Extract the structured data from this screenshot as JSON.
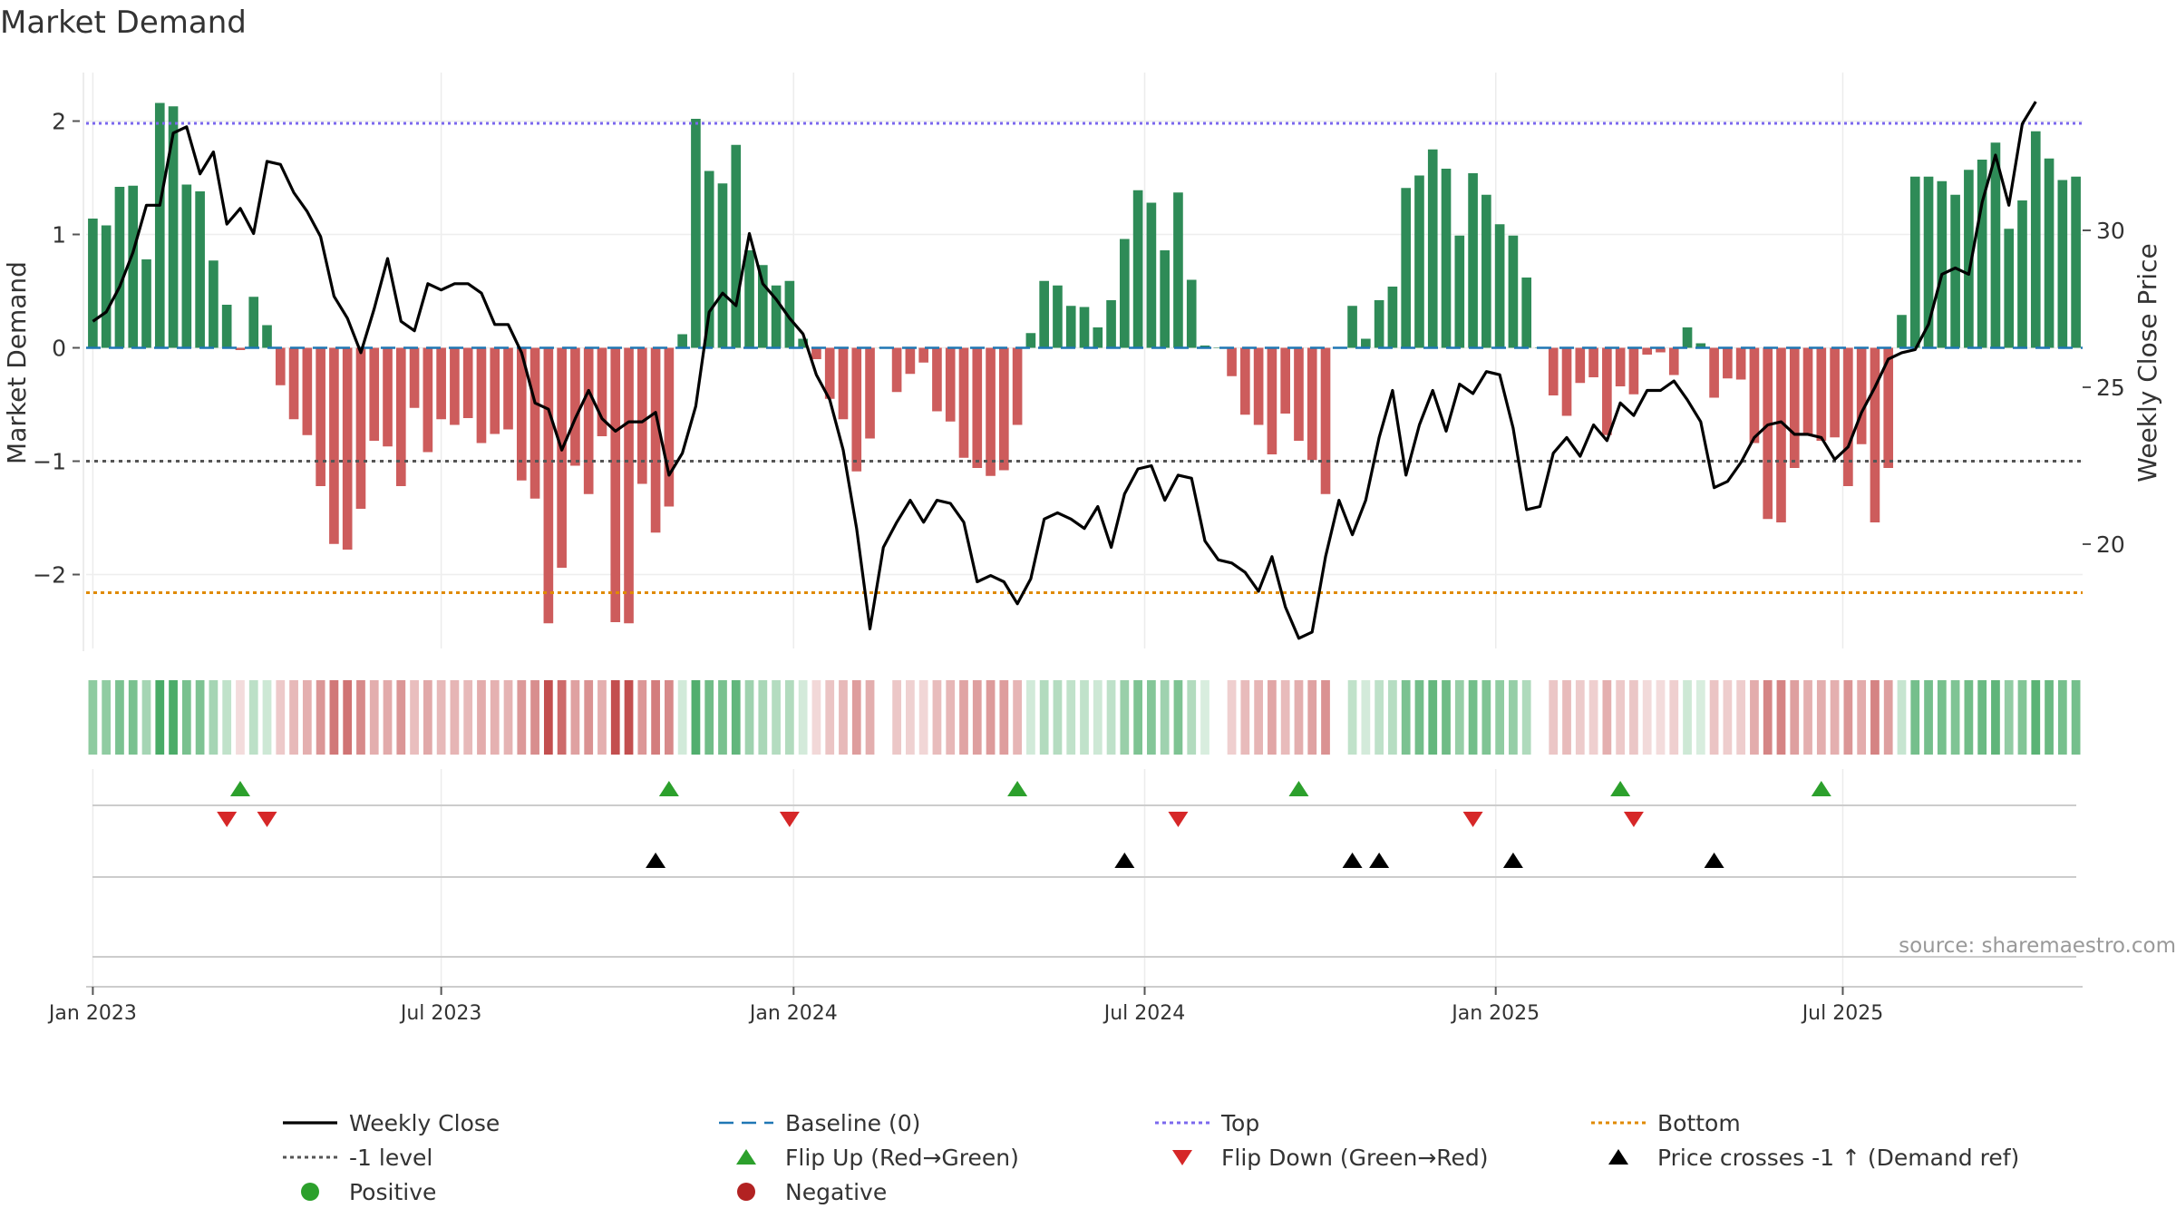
{
  "chart_data": {
    "type": "bar",
    "title": "Market Demand",
    "ylabel": "Market Demand",
    "y2label": "Weekly Close Price",
    "source": "source: sharemaestro.com",
    "ylim": [
      -2.6,
      2.25
    ],
    "y2lim": [
      16.15,
      34.75
    ],
    "yticks": [
      {
        "value": 2,
        "label": "2"
      },
      {
        "value": 1,
        "label": "1"
      },
      {
        "value": 0,
        "label": "0"
      },
      {
        "value": -1,
        "label": "−1"
      },
      {
        "value": -2,
        "label": "−2"
      }
    ],
    "y2ticks": [
      {
        "value": 30,
        "label": "30"
      },
      {
        "value": 25,
        "label": "25"
      },
      {
        "value": 20,
        "label": "20"
      }
    ],
    "xticks": [
      {
        "week": 1,
        "label": "Jan 2023"
      },
      {
        "week": 27,
        "label": "Jul 2023"
      },
      {
        "week": 53.3,
        "label": "Jan 2024"
      },
      {
        "week": 79.5,
        "label": "Jul 2024"
      },
      {
        "week": 105.7,
        "label": "Jan 2025"
      },
      {
        "week": 131.6,
        "label": "Jul 2025"
      }
    ],
    "reference_lines": {
      "top": 1.98,
      "bottom": -2.16,
      "minus_one": -1,
      "baseline": 0
    },
    "demand": [
      1.14,
      1.08,
      1.42,
      1.43,
      0.78,
      2.16,
      2.13,
      1.44,
      1.38,
      0.77,
      0.38,
      -0.02,
      0.45,
      0.2,
      -0.33,
      -0.63,
      -0.77,
      -1.22,
      -1.73,
      -1.78,
      -1.42,
      -0.82,
      -0.87,
      -1.22,
      -0.53,
      -0.92,
      -0.63,
      -0.68,
      -0.62,
      -0.84,
      -0.76,
      -0.72,
      -1.17,
      -1.33,
      -2.43,
      -1.94,
      -1.04,
      -1.29,
      -0.78,
      -2.42,
      -2.43,
      -1.2,
      -1.63,
      -1.4,
      0.12,
      2.02,
      1.56,
      1.45,
      1.79,
      0.86,
      0.73,
      0.55,
      0.59,
      0.08,
      -0.1,
      -0.45,
      -0.63,
      -1.09,
      -0.8,
      0.0,
      -0.39,
      -0.23,
      -0.13,
      -0.56,
      -0.65,
      -0.97,
      -1.06,
      -1.13,
      -1.08,
      -0.68,
      0.13,
      0.59,
      0.55,
      0.37,
      0.36,
      0.18,
      0.42,
      0.96,
      1.39,
      1.28,
      0.86,
      1.37,
      0.6,
      0.02,
      -0.0,
      -0.25,
      -0.59,
      -0.68,
      -0.94,
      -0.58,
      -0.82,
      -0.99,
      -1.29,
      0.0,
      0.37,
      0.08,
      0.42,
      0.54,
      1.41,
      1.52,
      1.75,
      1.58,
      0.99,
      1.54,
      1.35,
      1.09,
      0.99,
      0.62,
      0.0,
      -0.42,
      -0.6,
      -0.31,
      -0.26,
      -0.77,
      -0.34,
      -0.41,
      -0.06,
      -0.04,
      -0.24,
      0.18,
      0.04,
      -0.44,
      -0.27,
      -0.28,
      -0.84,
      -1.51,
      -1.54,
      -1.06,
      -0.77,
      -0.82,
      -0.79,
      -1.22,
      -0.85,
      -1.54,
      -1.06,
      0.29,
      1.51,
      1.51,
      1.47,
      1.35,
      1.57,
      1.66,
      1.81,
      1.05,
      1.3,
      1.91,
      1.67,
      1.48,
      1.51
    ],
    "series": [
      {
        "name": "Weekly Close",
        "type": "line",
        "axis": "y2",
        "values": [
          27.1,
          27.4,
          28.2,
          29.3,
          30.8,
          30.8,
          33.1,
          33.3,
          31.8,
          32.5,
          30.2,
          30.7,
          29.9,
          32.2,
          32.1,
          31.2,
          30.6,
          29.8,
          27.9,
          27.2,
          26.1,
          27.5,
          29.1,
          27.1,
          26.8,
          28.3,
          28.1,
          28.3,
          28.3,
          28.0,
          27.0,
          27.0,
          26.1,
          24.5,
          24.3,
          23.0,
          24.0,
          24.9,
          24.0,
          23.6,
          23.9,
          23.9,
          24.2,
          22.2,
          22.9,
          24.4,
          27.4,
          28.0,
          27.6,
          29.9,
          28.3,
          27.8,
          27.2,
          26.7,
          25.4,
          24.6,
          23.0,
          20.5,
          17.3,
          19.9,
          20.7,
          21.4,
          20.7,
          21.4,
          21.3,
          20.7,
          18.8,
          19.0,
          18.8,
          18.1,
          18.9,
          20.8,
          21.0,
          20.8,
          20.5,
          21.2,
          19.9,
          21.6,
          22.4,
          22.5,
          21.4,
          22.2,
          22.1,
          20.1,
          19.5,
          19.4,
          19.1,
          18.5,
          19.6,
          18.0,
          17.0,
          17.2,
          19.6,
          21.4,
          20.3,
          21.4,
          23.4,
          24.9,
          22.2,
          23.8,
          24.9,
          23.6,
          25.1,
          24.8,
          25.5,
          25.4,
          23.7,
          21.1,
          21.2,
          22.9,
          23.4,
          22.8,
          23.8,
          23.3,
          24.5,
          24.1,
          24.9,
          24.9,
          25.2,
          24.6,
          23.9,
          21.8,
          22.0,
          22.6,
          23.4,
          23.8,
          23.9,
          23.5,
          23.5,
          23.4,
          22.7,
          23.1,
          24.2,
          25.0,
          25.9,
          26.1,
          26.2,
          27.0,
          28.6,
          28.8,
          28.6,
          30.9,
          32.4,
          30.8,
          33.4,
          34.1
        ]
      },
      {
        "name": "Market Demand",
        "type": "bar",
        "axis": "y",
        "values_ref": "demand"
      }
    ],
    "flips_up_weeks": [
      12,
      44,
      70,
      91,
      115,
      130
    ],
    "flips_down_weeks": [
      11,
      14,
      53,
      82,
      104,
      116
    ],
    "price_cross_weeks": [
      43,
      78,
      95,
      97,
      107,
      122
    ],
    "legend": [
      {
        "label": "Weekly Close",
        "symbol": "line",
        "color": "#000000"
      },
      {
        "label": "Baseline (0)",
        "symbol": "dash-long",
        "color": "#1f77b4"
      },
      {
        "label": "Top",
        "symbol": "dotted",
        "color": "#7b68ee"
      },
      {
        "label": "Bottom",
        "symbol": "dotted",
        "color": "#e08a00"
      },
      {
        "label": "-1 level",
        "symbol": "dotted",
        "color": "#555555"
      },
      {
        "label": "Flip Up (Red→Green)",
        "symbol": "triangle-up",
        "color": "#2ca02c"
      },
      {
        "label": "Flip Down (Green→Red)",
        "symbol": "triangle-down",
        "color": "#d62728"
      },
      {
        "label": "Price crosses -1 ↑ (Demand ref)",
        "symbol": "triangle-up",
        "color": "#000000"
      },
      {
        "label": "Positive",
        "symbol": "circle",
        "color": "#2ca02c"
      },
      {
        "label": "Negative",
        "symbol": "circle",
        "color": "#b22222"
      }
    ],
    "colors": {
      "positive_bar": "#2e8b57",
      "negative_bar": "#cd5c5c",
      "price_line": "#000000",
      "baseline": "#1f77b4",
      "top": "#7b68ee",
      "bottom": "#e08a00",
      "minus_one": "#555555",
      "flip_up": "#2ca02c",
      "flip_down": "#d62728",
      "price_cross": "#000000"
    }
  }
}
